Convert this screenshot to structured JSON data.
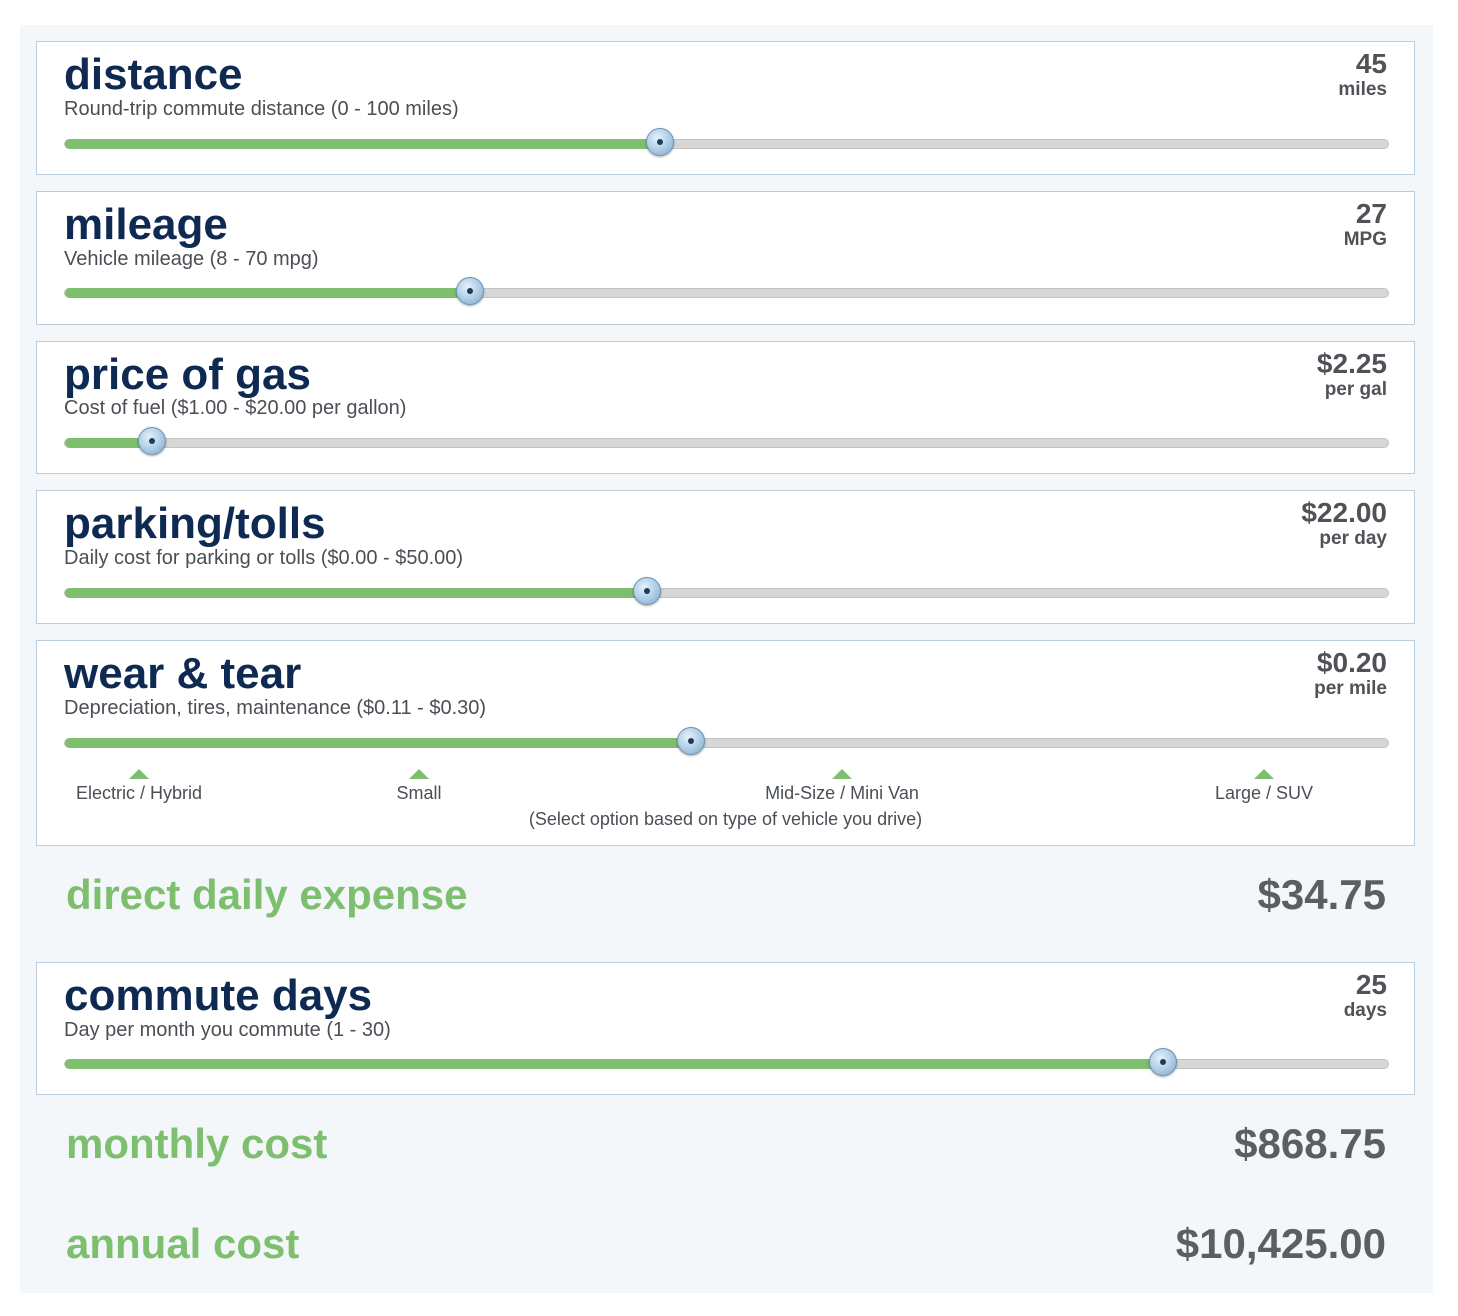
{
  "sliders": [
    {
      "title": "distance",
      "desc": "Round-trip commute distance (0 - 100 miles)",
      "value": "45",
      "unit": "miles",
      "level": 0.45
    },
    {
      "title": "mileage",
      "desc": "Vehicle mileage (8 - 70 mpg)",
      "value": "27",
      "unit": "MPG",
      "level": 0.306
    },
    {
      "title": "price of gas",
      "desc": "Cost of fuel ($1.00 - $20.00 per gallon)",
      "value": "$2.25",
      "unit": "per gal",
      "level": 0.066
    },
    {
      "title": "parking/tolls",
      "desc": "Daily cost for parking or tolls ($0.00 - $50.00)",
      "value": "$22.00",
      "unit": "per day",
      "level": 0.44
    },
    {
      "title": "wear & tear",
      "desc": "Depreciation, tires, maintenance ($0.11 - $0.30)",
      "value": "$0.20",
      "unit": "per mile",
      "level": 0.473
    },
    {
      "title": "commute days",
      "desc": "Day per month you commute (1 - 30)",
      "value": "25",
      "unit": "days",
      "level": 0.83
    }
  ],
  "vehicle_options": [
    "Electric / Hybrid",
    "Small",
    "Mid-Size / Mini Van",
    "Large / SUV"
  ],
  "vehicle_hint": "(Select option based on type of vehicle you drive)",
  "results": {
    "daily": {
      "label": "direct daily expense",
      "value": "$34.75"
    },
    "monthly": {
      "label": "monthly cost",
      "value": "$868.75"
    },
    "annual": {
      "label": "annual cost",
      "value": "$10,425.00"
    }
  },
  "colors": {
    "accent": "#7dbf6e",
    "title": "#0f2a52",
    "value": "#4f5358",
    "track": "#d7d7d7",
    "panel": "#f3f7fa"
  }
}
